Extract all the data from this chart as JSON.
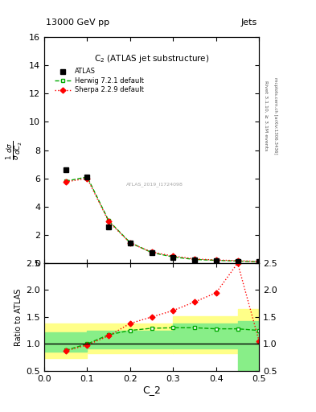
{
  "header_left": "13000 GeV pp",
  "header_right": "Jets",
  "xlabel": "C_2",
  "ylabel_main": "$\\frac{1}{\\sigma}\\frac{d\\sigma}{dC_2}$",
  "ylabel_ratio": "Ratio to ATLAS",
  "right_label1": "Rivet 3.1.10, ≥ 3.1M events",
  "right_label2": "mcplots.cern.ch [arXiv:1306.3436]",
  "watermark": "ATLAS_2019_I1724098",
  "atlas_x": [
    0.05,
    0.1,
    0.15,
    0.2,
    0.25,
    0.3,
    0.35,
    0.4,
    0.45,
    0.5
  ],
  "atlas_y": [
    6.6,
    6.1,
    2.55,
    1.4,
    0.73,
    0.42,
    0.23,
    0.18,
    0.13,
    0.09
  ],
  "herwig_x": [
    0.05,
    0.1,
    0.15,
    0.2,
    0.25,
    0.3,
    0.35,
    0.4,
    0.45,
    0.5
  ],
  "herwig_y": [
    5.8,
    6.1,
    3.0,
    1.45,
    0.75,
    0.44,
    0.26,
    0.2,
    0.15,
    0.1
  ],
  "sherpa_x": [
    0.05,
    0.1,
    0.15,
    0.2,
    0.25,
    0.3,
    0.35,
    0.4,
    0.45,
    0.5
  ],
  "sherpa_y": [
    5.75,
    6.0,
    2.95,
    1.42,
    0.78,
    0.5,
    0.3,
    0.22,
    0.18,
    0.11
  ],
  "herwig_ratio_x": [
    0.05,
    0.1,
    0.15,
    0.2,
    0.25,
    0.3,
    0.35,
    0.4,
    0.45,
    0.5
  ],
  "herwig_ratio_y": [
    0.88,
    1.0,
    1.17,
    1.25,
    1.29,
    1.3,
    1.3,
    1.28,
    1.28,
    1.25
  ],
  "sherpa_ratio_x": [
    0.05,
    0.1,
    0.15,
    0.2,
    0.25,
    0.3,
    0.35,
    0.4,
    0.45,
    0.5
  ],
  "sherpa_ratio_y": [
    0.87,
    0.98,
    1.15,
    1.38,
    1.5,
    1.62,
    1.78,
    1.95,
    2.5,
    1.05
  ],
  "yband_yellow_segs": [
    [
      0.0,
      0.1,
      0.73,
      0.73,
      1.38,
      1.38
    ],
    [
      0.1,
      0.3,
      0.83,
      0.83,
      1.38,
      1.38
    ],
    [
      0.3,
      0.45,
      0.83,
      0.83,
      1.52,
      1.52
    ],
    [
      0.45,
      0.55,
      1.35,
      1.35,
      1.65,
      1.65
    ]
  ],
  "yband_green_segs": [
    [
      0.0,
      0.1,
      0.85,
      0.85,
      1.22,
      1.22
    ],
    [
      0.1,
      0.3,
      0.92,
      0.92,
      1.25,
      1.25
    ],
    [
      0.3,
      0.45,
      0.92,
      0.92,
      1.38,
      1.38
    ],
    [
      0.45,
      0.55,
      0.42,
      0.42,
      1.42,
      1.42
    ]
  ],
  "color_atlas": "#000000",
  "color_herwig": "#00aa00",
  "color_sherpa": "#ff0000",
  "color_yellow": "#ffff88",
  "color_green": "#88ee88",
  "ylim_main": [
    0,
    16
  ],
  "ylim_ratio": [
    0.5,
    2.5
  ],
  "xlim": [
    0.0,
    0.5
  ],
  "xticks": [
    0.0,
    0.1,
    0.2,
    0.3,
    0.4,
    0.5
  ],
  "yticks_main": [
    0,
    2,
    4,
    6,
    8,
    10,
    12,
    14,
    16
  ],
  "yticks_ratio": [
    0.5,
    1.0,
    1.5,
    2.0,
    2.5
  ]
}
